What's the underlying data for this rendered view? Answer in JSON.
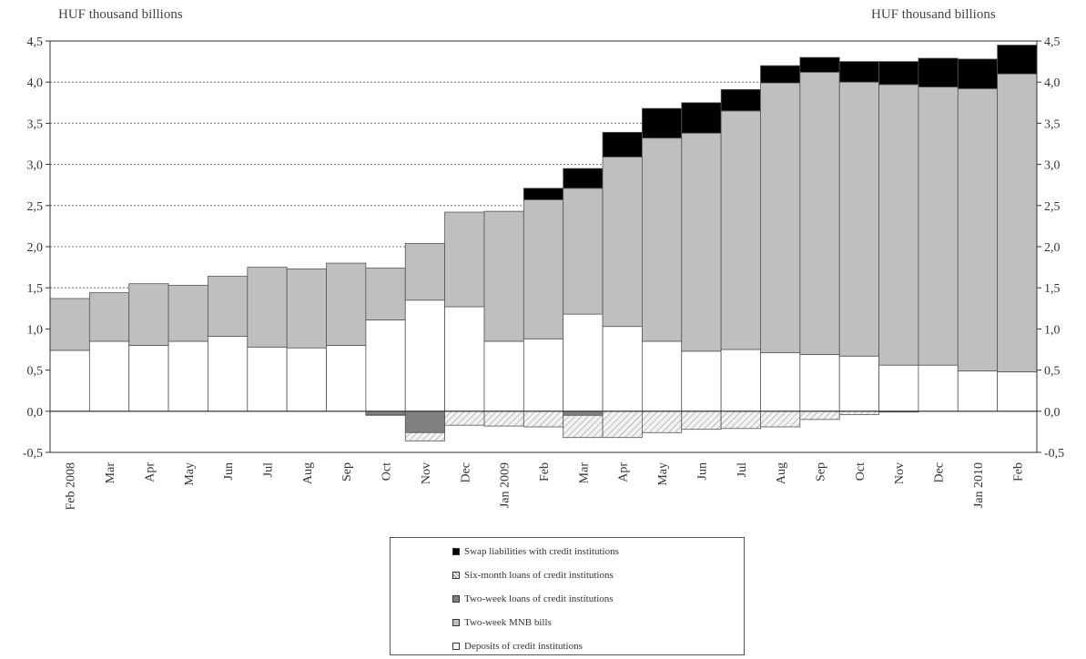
{
  "unit_left": "HUF thousand billions",
  "unit_right": "HUF thousand billions",
  "colors": {
    "swap": "#000000",
    "six_month": "#f0f0f0",
    "two_week_loans": "#808080",
    "mnb_bills": "#bfbfbf",
    "deposits": "#ffffff"
  },
  "legend": [
    {
      "key": "swap",
      "label": "Swap liabilities with credit institutions"
    },
    {
      "key": "six_month",
      "label": "Six-month loans of credit institutions"
    },
    {
      "key": "two_week_loans",
      "label": "Two-week loans of credit institutions"
    },
    {
      "key": "mnb_bills",
      "label": "Two-week MNB bills"
    },
    {
      "key": "deposits",
      "label": "Deposits of credit institutions"
    }
  ],
  "chart_data": {
    "type": "bar",
    "stacked": true,
    "ylim": [
      -0.5,
      4.5
    ],
    "yticks": [
      "-0,5",
      "0,0",
      "0,5",
      "1,0",
      "1,5",
      "2,0",
      "2,5",
      "3,0",
      "3,5",
      "4,0",
      "4,5"
    ],
    "categories": [
      "Feb 2008",
      "Mar",
      "Apr",
      "May",
      "Jun",
      "Jul",
      "Aug",
      "Sep",
      "Oct",
      "Nov",
      "Dec",
      "Jan 2009",
      "Feb",
      "Mar",
      "Apr",
      "May",
      "Jun",
      "Jul",
      "Aug",
      "Sep",
      "Oct",
      "Nov",
      "Dec",
      "Jan 2010",
      "Feb"
    ],
    "series": [
      {
        "name": "Deposits of credit institutions",
        "key": "deposits",
        "values": [
          0.74,
          0.85,
          0.8,
          0.85,
          0.91,
          0.78,
          0.77,
          0.8,
          1.11,
          1.35,
          1.27,
          0.85,
          0.88,
          1.18,
          1.03,
          0.85,
          0.73,
          0.75,
          0.71,
          0.69,
          0.67,
          0.56,
          0.56,
          0.49,
          0.48
        ]
      },
      {
        "name": "Two-week MNB bills",
        "key": "mnb_bills",
        "values": [
          0.63,
          0.59,
          0.75,
          0.68,
          0.73,
          0.97,
          0.96,
          1.0,
          0.63,
          0.69,
          1.15,
          1.58,
          1.69,
          1.53,
          2.06,
          2.47,
          2.65,
          2.9,
          3.28,
          3.43,
          3.33,
          3.41,
          3.38,
          3.43,
          3.62
        ]
      },
      {
        "name": "Swap liabilities with credit institutions",
        "key": "swap",
        "values": [
          0,
          0,
          0,
          0,
          0,
          0,
          0,
          0,
          0,
          0,
          0,
          0,
          0.14,
          0.24,
          0.3,
          0.36,
          0.37,
          0.26,
          0.21,
          0.18,
          0.25,
          0.28,
          0.35,
          0.36,
          0.35
        ]
      },
      {
        "name": "Two-week loans of credit institutions",
        "key": "two_week_loans",
        "values": [
          0,
          0,
          0,
          0,
          0,
          0,
          0,
          0,
          -0.04,
          -0.26,
          0,
          0,
          0,
          -0.05,
          0,
          0,
          0,
          0,
          0,
          0,
          0,
          0,
          0,
          0,
          0
        ]
      },
      {
        "name": "Six-month loans of credit institutions",
        "key": "six_month",
        "values": [
          0,
          0,
          0,
          0,
          0,
          0,
          0,
          0,
          -0.01,
          -0.1,
          -0.17,
          -0.18,
          -0.19,
          -0.27,
          -0.32,
          -0.26,
          -0.22,
          -0.21,
          -0.19,
          -0.1,
          -0.04,
          -0.01,
          0,
          0,
          0
        ]
      }
    ]
  }
}
